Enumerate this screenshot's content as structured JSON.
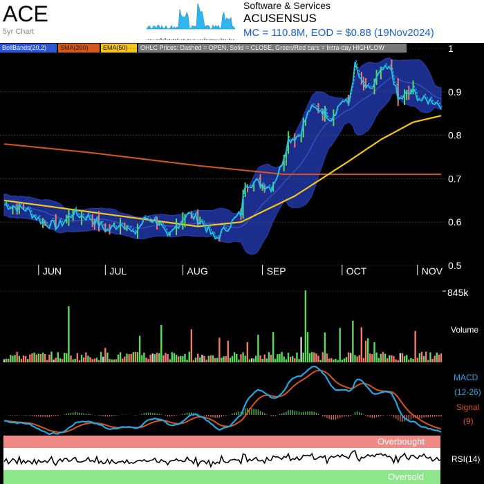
{
  "header": {
    "ticker": "ACE",
    "chart_label": "5yr Chart",
    "sector": "Software & Services",
    "company": "ACUSENSUS",
    "market_line": "MC = 110.8M, EOD = $0.88 (19Nov2024)"
  },
  "legend": {
    "bollinger": "BollBands(20,2)",
    "sma": "SMA(200)",
    "ema": "EMA(50)",
    "ohlc_note": "OHLC Prices: Dashed = OPEN, Solid = CLOSE, Green/Red bars = Intra-day HIGH/LOW"
  },
  "colors": {
    "band_fill": "#1c2e8c",
    "close_line": "#22c3e6",
    "sma": "#d9561a",
    "ema": "#f5c518",
    "up": "#5fd85f",
    "down": "#f07b6b",
    "macd": "#22a7e6",
    "signal": "#d9561a",
    "overbought": "#f08a86",
    "oversold": "#8ee68a"
  },
  "chart_data": [
    {
      "type": "line",
      "panel": "price",
      "x_axis_labels": [
        "JUN",
        "JUL",
        "AUG",
        "SEP",
        "OCT",
        "NOV"
      ],
      "y_ticks": [
        1,
        0.9,
        0.8,
        0.7,
        0.6,
        0.5
      ],
      "ylim": [
        0.5,
        1.0
      ],
      "close_anchors": [
        [
          0,
          0.64
        ],
        [
          10,
          0.63
        ],
        [
          18,
          0.6
        ],
        [
          25,
          0.59
        ],
        [
          32,
          0.62
        ],
        [
          40,
          0.61
        ],
        [
          48,
          0.58
        ],
        [
          55,
          0.6
        ],
        [
          60,
          0.57
        ],
        [
          66,
          0.61
        ],
        [
          72,
          0.6
        ],
        [
          76,
          0.56
        ],
        [
          80,
          0.59
        ],
        [
          85,
          0.62
        ],
        [
          92,
          0.6
        ],
        [
          98,
          0.56
        ],
        [
          104,
          0.59
        ],
        [
          110,
          0.62
        ],
        [
          112,
          0.69
        ],
        [
          118,
          0.69
        ],
        [
          124,
          0.68
        ],
        [
          128,
          0.72
        ],
        [
          132,
          0.79
        ],
        [
          137,
          0.8
        ],
        [
          142,
          0.86
        ],
        [
          147,
          0.86
        ],
        [
          152,
          0.84
        ],
        [
          157,
          0.88
        ],
        [
          160,
          0.87
        ],
        [
          163,
          0.96
        ],
        [
          166,
          0.92
        ],
        [
          170,
          0.9
        ],
        [
          173,
          0.93
        ],
        [
          176,
          0.95
        ],
        [
          180,
          0.95
        ],
        [
          183,
          0.88
        ],
        [
          186,
          0.89
        ],
        [
          190,
          0.9
        ],
        [
          194,
          0.88
        ],
        [
          199,
          0.88
        ],
        [
          203,
          0.87
        ]
      ],
      "sma200_anchors": [
        [
          0,
          0.78
        ],
        [
          40,
          0.76
        ],
        [
          90,
          0.73
        ],
        [
          130,
          0.71
        ],
        [
          170,
          0.71
        ],
        [
          203,
          0.71
        ]
      ],
      "ema50_anchors": [
        [
          0,
          0.65
        ],
        [
          30,
          0.63
        ],
        [
          60,
          0.61
        ],
        [
          90,
          0.59
        ],
        [
          110,
          0.6
        ],
        [
          135,
          0.66
        ],
        [
          160,
          0.74
        ],
        [
          175,
          0.79
        ],
        [
          190,
          0.83
        ],
        [
          203,
          0.845
        ]
      ]
    },
    {
      "type": "bar",
      "panel": "volume",
      "label": "Volume",
      "max_label": "845k",
      "ymax": 845000
    },
    {
      "type": "line",
      "panel": "macd",
      "series": [
        {
          "name": "MACD"
        },
        {
          "name": "Signal"
        }
      ],
      "macd_label_1": "MACD",
      "macd_label_2": "(12-26)",
      "signal_label_1": "Signal",
      "signal_label_2": "(9)"
    },
    {
      "type": "line",
      "panel": "rsi",
      "series": [
        {
          "name": "RSI(14)"
        }
      ],
      "overbought_label": "Overbought",
      "oversold_label": "Oversold"
    }
  ]
}
